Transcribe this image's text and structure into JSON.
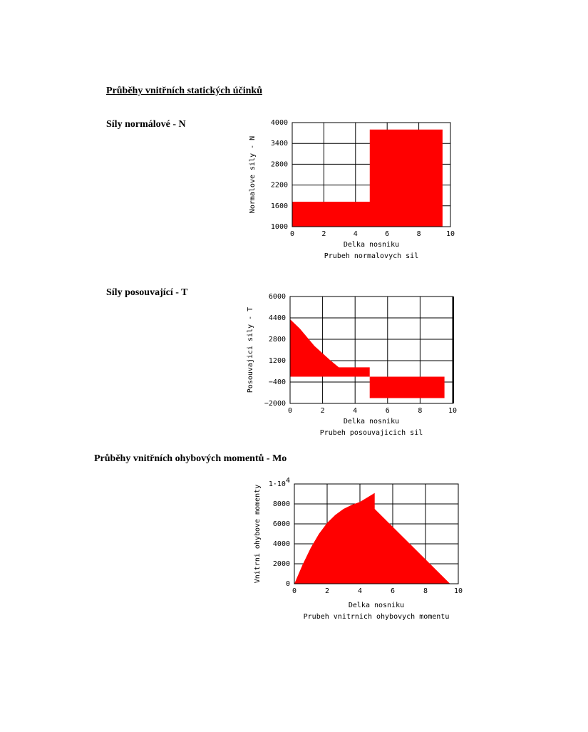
{
  "headings": {
    "main": "Průběhy vnitřních statických účinků",
    "normal": "Síly normálové - N",
    "shear": "Síly posouvající - T",
    "moment": "Průběhy vnitřních ohybových momentů - Mo"
  },
  "colors": {
    "fill": "#ff0000",
    "grid": "#000000"
  },
  "chart_data": [
    {
      "type": "area",
      "xlabel": "Delka nosniku",
      "ylabel": "Normalove sily - N",
      "caption": "Prubeh normalovych sil",
      "xlim": [
        0,
        10
      ],
      "ylim": [
        1000,
        4000
      ],
      "xticks": [
        0,
        2,
        4,
        6,
        8,
        10
      ],
      "yticks": [
        1000,
        1600,
        2200,
        2800,
        3400,
        4000
      ],
      "ytick_labels": [
        "1000",
        "1600",
        "2200",
        "2800",
        "3400",
        "4000"
      ],
      "grid": true,
      "baseline": 1000,
      "points": [
        [
          0,
          1720
        ],
        [
          4.9,
          1720
        ],
        [
          4.9,
          3800
        ],
        [
          9.5,
          3800
        ]
      ]
    },
    {
      "type": "area",
      "xlabel": "Delka nosniku",
      "ylabel": "Posouvajici sily - T",
      "caption": "Prubeh posouvajicich sil",
      "xlim": [
        0,
        10
      ],
      "ylim": [
        -2000,
        6000
      ],
      "xticks": [
        0,
        2,
        4,
        6,
        8,
        10
      ],
      "yticks": [
        -2000,
        -400,
        1200,
        2800,
        4400,
        6000
      ],
      "ytick_labels": [
        "−2000",
        "−400",
        "1200",
        "2800",
        "4400",
        "6000"
      ],
      "grid": true,
      "baseline": 0,
      "points": [
        [
          0,
          4300
        ],
        [
          0.6,
          3600
        ],
        [
          1.5,
          2300
        ],
        [
          2.5,
          1200
        ],
        [
          3,
          700
        ],
        [
          4.9,
          700
        ],
        [
          4.9,
          -1600
        ],
        [
          9.5,
          -1600
        ]
      ]
    },
    {
      "type": "area",
      "xlabel": "Delka nosniku",
      "ylabel": "Vnitrni ohybove momenty",
      "caption": "Prubeh vnitrnich ohybovych momentu",
      "xlim": [
        0,
        10
      ],
      "ylim": [
        0,
        10000
      ],
      "xticks": [
        0,
        2,
        4,
        6,
        8,
        10
      ],
      "yticks": [
        0,
        2000,
        4000,
        6000,
        8000,
        10000
      ],
      "ytick_labels": [
        "0",
        "2000",
        "4000",
        "6000",
        "8000",
        "1·10"
      ],
      "top_tick_exponent": "4",
      "grid": true,
      "baseline": 0,
      "points": [
        [
          0,
          0
        ],
        [
          0.5,
          1900
        ],
        [
          1,
          3600
        ],
        [
          1.5,
          5000
        ],
        [
          2,
          6100
        ],
        [
          2.5,
          6900
        ],
        [
          3,
          7500
        ],
        [
          3.5,
          7900
        ],
        [
          4,
          8200
        ],
        [
          4.5,
          8700
        ],
        [
          4.9,
          9100
        ],
        [
          4.9,
          7500
        ],
        [
          9.5,
          0
        ]
      ]
    }
  ]
}
